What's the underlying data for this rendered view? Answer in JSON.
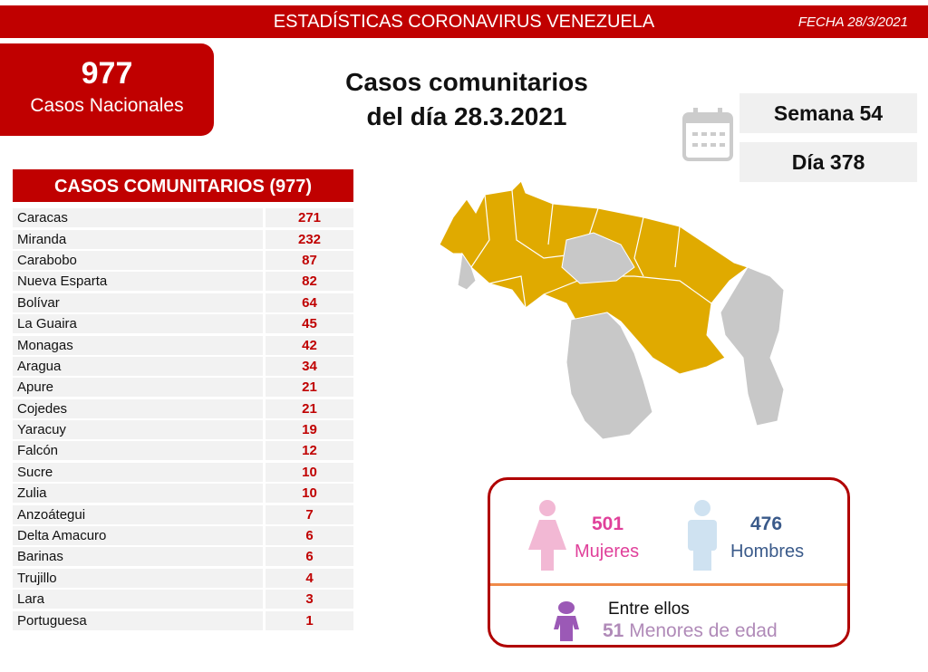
{
  "header": {
    "title": "ESTADÍSTICAS CORONAVIRUS VENEZUELA",
    "date": "FECHA 28/3/2021"
  },
  "national": {
    "value": "977",
    "label": "Casos Nacionales"
  },
  "main_title": {
    "line1": "Casos comunitarios",
    "line2": "del día 28.3.2021"
  },
  "calendar": {
    "week": "Semana 54",
    "day": "Día 378",
    "icon": "calendar-icon"
  },
  "table": {
    "header": "CASOS COMUNITARIOS (977)",
    "rows": [
      {
        "name": "Caracas",
        "value": "271"
      },
      {
        "name": "Miranda",
        "value": "232"
      },
      {
        "name": "Carabobo",
        "value": "87"
      },
      {
        "name": "Nueva Esparta",
        "value": "82"
      },
      {
        "name": "Bolívar",
        "value": "64"
      },
      {
        "name": "La Guaira",
        "value": "45"
      },
      {
        "name": "Monagas",
        "value": "42"
      },
      {
        "name": "Aragua",
        "value": "34"
      },
      {
        "name": "Apure",
        "value": "21"
      },
      {
        "name": "Cojedes",
        "value": "21"
      },
      {
        "name": "Yaracuy",
        "value": "19"
      },
      {
        "name": "Falcón",
        "value": "12"
      },
      {
        "name": "Sucre",
        "value": "10"
      },
      {
        "name": "Zulia",
        "value": "10"
      },
      {
        "name": "Anzoátegui",
        "value": "7"
      },
      {
        "name": "Delta Amacuro",
        "value": "6"
      },
      {
        "name": "Barinas",
        "value": "6"
      },
      {
        "name": "Trujillo",
        "value": "4"
      },
      {
        "name": "Lara",
        "value": "3"
      },
      {
        "name": "Portuguesa",
        "value": "1"
      }
    ]
  },
  "gender": {
    "women_count": "501",
    "women_label": "Mujeres",
    "men_count": "476",
    "men_label": "Hombres",
    "minors_intro": "Entre ellos",
    "minors_count": "51",
    "minors_label": "Menores de edad"
  },
  "colors": {
    "red": "#c00000",
    "map_yellow": "#e0aa00",
    "map_grey": "#c8c8c8",
    "women": "#e0409a",
    "men": "#3a5a8a",
    "minors": "#9b59b6"
  }
}
